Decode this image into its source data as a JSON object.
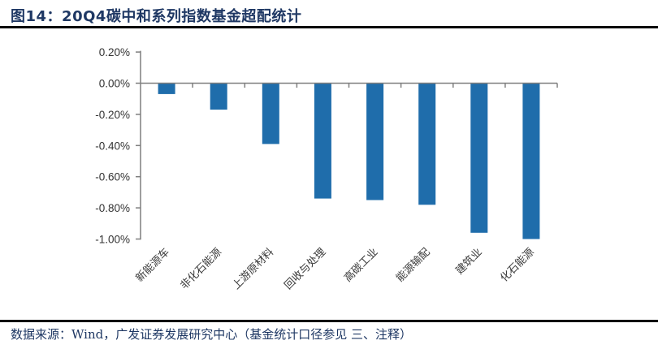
{
  "header": {
    "title": "图14：20Q4碳中和系列指数基金超配统计"
  },
  "footer": {
    "source": "数据来源：Wind，广发证券发展研究中心（基金统计口径参见 三、注释）"
  },
  "chart_data": {
    "type": "bar",
    "title": "20Q4碳中和系列指数基金超配统计",
    "categories": [
      "新能源车",
      "非化石能源",
      "上游原材料",
      "回收与处理",
      "高碳工业",
      "能源输配",
      "建筑业",
      "化石能源"
    ],
    "values": [
      -0.07,
      -0.17,
      -0.39,
      -0.74,
      -0.75,
      -0.78,
      -0.96,
      -1.0
    ],
    "unit": "%",
    "xlabel": "",
    "ylabel": "",
    "ylim": [
      -1.0,
      0.2
    ],
    "ytick_step": 0.2,
    "ytick_labels": [
      "0.20%",
      "0.00%",
      "-0.20%",
      "-0.40%",
      "-0.60%",
      "-0.80%",
      "-1.00%"
    ],
    "bar_color": "#1F6DAB",
    "axis_color": "#7F7F7F",
    "tick_label_color": "#333333",
    "category_label_color": "#3A3A3A",
    "grid": false,
    "legend_position": "none"
  }
}
